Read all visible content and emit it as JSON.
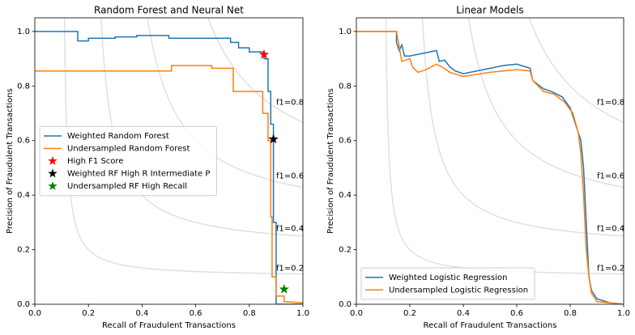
{
  "chart_data": [
    {
      "type": "line",
      "title": "Random Forest and Neural Net",
      "xlabel": "Recall of Fraudulent Transactions",
      "ylabel": "Precision of Fraudulent Transactions",
      "xlim": [
        0,
        1
      ],
      "ylim": [
        0,
        1.05
      ],
      "xticks": [
        {
          "value": 0,
          "label": "0.0"
        },
        0.2,
        0.4,
        0.6,
        0.8,
        {
          "value": 1,
          "label": "1.0"
        }
      ],
      "yticks": [
        {
          "value": 0,
          "label": "0.0"
        },
        0.2,
        0.4,
        0.6,
        0.8,
        {
          "value": 1,
          "label": "1.0"
        }
      ],
      "iso_f1": [
        {
          "value": 0.2,
          "label": "f1=0.2"
        },
        {
          "value": 0.4,
          "label": "f1=0.4"
        },
        {
          "value": 0.6,
          "label": "f1=0.6"
        },
        {
          "value": 0.8,
          "label": "f1=0.8"
        }
      ],
      "legend": "center left",
      "series": [
        {
          "name": "Weighted Random Forest",
          "color": "#1f77b4",
          "x": [
            0,
            0.16,
            0.16,
            0.2,
            0.2,
            0.3,
            0.3,
            0.38,
            0.38,
            0.5,
            0.5,
            0.73,
            0.73,
            0.76,
            0.76,
            0.8,
            0.8,
            0.855,
            0.855,
            0.87,
            0.87,
            0.88,
            0.88,
            0.89,
            0.89,
            0.9,
            0.9,
            1.0
          ],
          "values": [
            1.0,
            1.0,
            0.965,
            0.965,
            0.975,
            0.975,
            0.98,
            0.98,
            0.985,
            0.985,
            0.975,
            0.975,
            0.96,
            0.96,
            0.94,
            0.94,
            0.925,
            0.925,
            0.9,
            0.9,
            0.78,
            0.78,
            0.66,
            0.66,
            0.3,
            0.3,
            0.0,
            0.0
          ]
        },
        {
          "name": "Undersampled Random Forest",
          "color": "#ff7f0e",
          "x": [
            0,
            0.51,
            0.51,
            0.66,
            0.66,
            0.74,
            0.74,
            0.85,
            0.85,
            0.87,
            0.87,
            0.88,
            0.88,
            0.885,
            0.885,
            0.9,
            0.9,
            0.93,
            0.93,
            1.0
          ],
          "values": [
            0.855,
            0.855,
            0.875,
            0.875,
            0.865,
            0.865,
            0.78,
            0.78,
            0.7,
            0.7,
            0.6,
            0.6,
            0.32,
            0.32,
            0.1,
            0.1,
            0.03,
            0.03,
            0.01,
            0.005
          ]
        },
        {
          "name": "High F1 Score",
          "color": "#ff0000",
          "marker": "star",
          "x": [
            0.855
          ],
          "values": [
            0.915
          ]
        },
        {
          "name": "Weighted RF High R Intermediate P",
          "color": "#000000",
          "marker": "star",
          "x": [
            0.89
          ],
          "values": [
            0.605
          ]
        },
        {
          "name": "Undersampled RF High Recall",
          "color": "#008000",
          "marker": "star",
          "x": [
            0.93
          ],
          "values": [
            0.055
          ]
        }
      ]
    },
    {
      "type": "line",
      "title": "Linear Models",
      "xlabel": "Recall of Fraudulent Transactions",
      "ylabel": "Precision of Fraudulent Transactions",
      "xlim": [
        0,
        1
      ],
      "ylim": [
        0,
        1.05
      ],
      "xticks": [
        {
          "value": 0,
          "label": "0.0"
        },
        0.2,
        0.4,
        0.6,
        0.8,
        {
          "value": 1,
          "label": "1.0"
        }
      ],
      "yticks": [
        {
          "value": 0,
          "label": "0.0"
        },
        0.2,
        0.4,
        0.6,
        0.8,
        {
          "value": 1,
          "label": "1.0"
        }
      ],
      "iso_f1": [
        {
          "value": 0.2,
          "label": "f1=0.2"
        },
        {
          "value": 0.4,
          "label": "f1=0.4"
        },
        {
          "value": 0.6,
          "label": "f1=0.6"
        },
        {
          "value": 0.8,
          "label": "f1=0.8"
        }
      ],
      "legend": "lower left",
      "series": [
        {
          "name": "Weighted Logistic Regression",
          "color": "#1f77b4",
          "x": [
            0,
            0.15,
            0.15,
            0.16,
            0.17,
            0.18,
            0.2,
            0.25,
            0.3,
            0.31,
            0.33,
            0.35,
            0.37,
            0.4,
            0.45,
            0.5,
            0.55,
            0.6,
            0.65,
            0.66,
            0.7,
            0.73,
            0.77,
            0.8,
            0.82,
            0.84,
            0.85,
            0.86,
            0.87,
            0.88,
            0.9,
            0.95,
            1.0
          ],
          "values": [
            1.0,
            1.0,
            0.96,
            0.93,
            0.95,
            0.91,
            0.91,
            0.92,
            0.93,
            0.89,
            0.895,
            0.87,
            0.855,
            0.845,
            0.855,
            0.865,
            0.875,
            0.88,
            0.865,
            0.82,
            0.79,
            0.78,
            0.76,
            0.72,
            0.66,
            0.6,
            0.5,
            0.3,
            0.1,
            0.05,
            0.02,
            0.005,
            0.0
          ]
        },
        {
          "name": "Undersampled Logistic Regression",
          "color": "#ff7f0e",
          "x": [
            0,
            0.15,
            0.17,
            0.2,
            0.21,
            0.23,
            0.26,
            0.3,
            0.32,
            0.35,
            0.4,
            0.5,
            0.6,
            0.65,
            0.66,
            0.7,
            0.74,
            0.78,
            0.81,
            0.83,
            0.84,
            0.85,
            0.86,
            0.87,
            0.88,
            0.9,
            1.0
          ],
          "values": [
            1.0,
            1.0,
            0.89,
            0.9,
            0.87,
            0.85,
            0.86,
            0.88,
            0.87,
            0.85,
            0.835,
            0.85,
            0.86,
            0.855,
            0.82,
            0.78,
            0.77,
            0.74,
            0.7,
            0.63,
            0.55,
            0.4,
            0.2,
            0.1,
            0.04,
            0.01,
            0.0
          ]
        }
      ]
    }
  ]
}
